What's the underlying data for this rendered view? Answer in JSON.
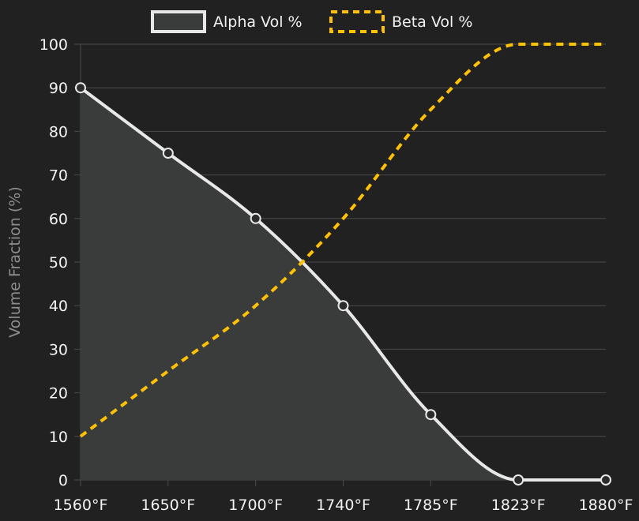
{
  "chart_data": {
    "type": "line",
    "categories": [
      "1560°F",
      "1650°F",
      "1700°F",
      "1740°F",
      "1785°F",
      "1823°F",
      "1880°F"
    ],
    "series": [
      {
        "name": "Alpha Vol %",
        "values": [
          90,
          75,
          60,
          40,
          15,
          0,
          0
        ],
        "color": "#e8e8e8",
        "fill": "#3a3c3b",
        "style": "solid",
        "markers": true
      },
      {
        "name": "Beta Vol %",
        "values": [
          10,
          25,
          40,
          60,
          85,
          100,
          100
        ],
        "color": "#ffc107",
        "style": "dashed",
        "markers": false
      }
    ],
    "ylabel": "Volume Fraction (%)",
    "xlabel": "",
    "ylim": [
      0,
      100
    ],
    "yticks": [
      "0",
      "10",
      "20",
      "30",
      "40",
      "50",
      "60",
      "70",
      "80",
      "90",
      "100"
    ],
    "grid": true,
    "legend": "top-center",
    "colors": {
      "background": "#212121",
      "grid": "#4a4a4a",
      "text": "#f2f2f2",
      "axis_title": "#8d8d8d"
    }
  }
}
